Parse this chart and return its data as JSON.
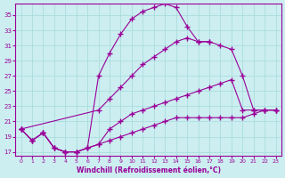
{
  "bg_color": "#cceef0",
  "grid_color": "#aadddd",
  "line_color": "#990099",
  "marker": "+",
  "xlabel": "Windchill (Refroidissement éolien,°C)",
  "xlabel_color": "#990099",
  "tick_color": "#990099",
  "ylim": [
    16.5,
    36.5
  ],
  "xlim": [
    -0.5,
    23.5
  ],
  "yticks": [
    17,
    19,
    21,
    23,
    25,
    27,
    29,
    31,
    33,
    35
  ],
  "xticks": [
    0,
    1,
    2,
    3,
    4,
    5,
    6,
    7,
    8,
    9,
    10,
    11,
    12,
    13,
    14,
    15,
    16,
    17,
    18,
    19,
    20,
    21,
    22,
    23
  ],
  "lines": {
    "line1_x": [
      0,
      1,
      2,
      3,
      4,
      5,
      6,
      7,
      8,
      9,
      10,
      11,
      12,
      13,
      14,
      15,
      16,
      17
    ],
    "line1_y": [
      20.0,
      18.5,
      19.5,
      17.5,
      17.0,
      17.0,
      17.5,
      27.0,
      30.0,
      32.5,
      34.5,
      35.5,
      36.0,
      36.5,
      36.0,
      33.5,
      31.5,
      31.5
    ],
    "line2_x": [
      0,
      7,
      8,
      9,
      10,
      11,
      12,
      13,
      14,
      15,
      16,
      17,
      18,
      19,
      20,
      21,
      22,
      23
    ],
    "line2_y": [
      20.0,
      22.5,
      24.0,
      25.5,
      27.0,
      28.5,
      29.5,
      30.5,
      31.5,
      32.0,
      31.5,
      31.5,
      31.0,
      30.5,
      27.0,
      22.5,
      22.5,
      22.5
    ],
    "line3_x": [
      0,
      1,
      2,
      3,
      4,
      5,
      6,
      7,
      8,
      9,
      10,
      11,
      12,
      13,
      14,
      15,
      16,
      17,
      18,
      19,
      20,
      21,
      22,
      23
    ],
    "line3_y": [
      20.0,
      18.5,
      19.5,
      17.5,
      17.0,
      17.0,
      17.5,
      18.0,
      20.0,
      21.0,
      22.0,
      22.5,
      23.0,
      23.5,
      24.0,
      24.5,
      25.0,
      25.5,
      26.0,
      26.5,
      22.5,
      22.5,
      22.5,
      22.5
    ],
    "line4_x": [
      0,
      1,
      2,
      3,
      4,
      5,
      6,
      7,
      8,
      9,
      10,
      11,
      12,
      13,
      14,
      15,
      16,
      17,
      18,
      19,
      20,
      21,
      22,
      23
    ],
    "line4_y": [
      20.0,
      18.5,
      19.5,
      17.5,
      17.0,
      17.0,
      17.5,
      18.0,
      18.5,
      19.0,
      19.5,
      20.0,
      20.5,
      21.0,
      21.5,
      21.5,
      21.5,
      21.5,
      21.5,
      21.5,
      21.5,
      22.0,
      22.5,
      22.5
    ]
  }
}
